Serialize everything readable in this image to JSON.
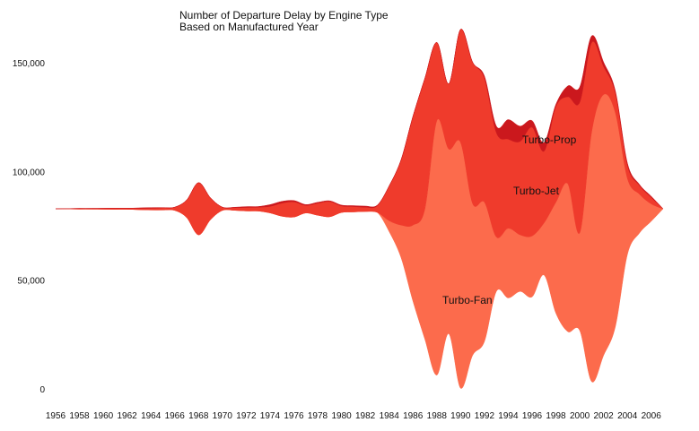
{
  "chart_data": {
    "type": "area",
    "subtype": "streamgraph",
    "title": "Number of Departure Delay by Engine Type",
    "subtitle": "Based on Manufactured Year",
    "xlabel": "",
    "ylabel": "",
    "ylim": [
      0,
      165000
    ],
    "yticks": [
      0,
      50000,
      100000,
      150000
    ],
    "ytick_labels": [
      "0",
      "50,000",
      "100,000",
      "150,000"
    ],
    "x": [
      1956,
      1957,
      1958,
      1959,
      1960,
      1961,
      1962,
      1963,
      1964,
      1965,
      1966,
      1967,
      1968,
      1969,
      1970,
      1971,
      1972,
      1973,
      1974,
      1975,
      1976,
      1977,
      1978,
      1979,
      1980,
      1981,
      1982,
      1983,
      1984,
      1985,
      1986,
      1987,
      1988,
      1989,
      1990,
      1991,
      1992,
      1993,
      1994,
      1995,
      1996,
      1997,
      1998,
      1999,
      2000,
      2001,
      2002,
      2003,
      2004,
      2005,
      2006,
      2007
    ],
    "xtick_labels": [
      "1956",
      "1958",
      "1960",
      "1962",
      "1964",
      "1966",
      "1968",
      "1970",
      "1972",
      "1974",
      "1976",
      "1978",
      "1980",
      "1982",
      "1984",
      "1986",
      "1988",
      "1990",
      "1992",
      "1994",
      "1996",
      "1998",
      "2000",
      "2002",
      "2004",
      "2006"
    ],
    "grid": false,
    "legend": "none",
    "series": [
      {
        "name": "Turbo-Fan",
        "color": "#fc6b4c",
        "values": [
          0,
          0,
          0,
          0,
          0,
          0,
          0,
          0,
          0,
          0,
          0,
          0,
          0,
          0,
          0,
          0,
          0,
          0,
          0,
          0,
          0,
          0,
          0,
          0,
          0,
          0,
          0,
          0,
          5000,
          15000,
          35000,
          60000,
          117000,
          85000,
          113000,
          70000,
          64000,
          25000,
          32000,
          26000,
          28000,
          24000,
          51000,
          68000,
          45000,
          115000,
          120000,
          98000,
          35000,
          18000,
          8000,
          0
        ]
      },
      {
        "name": "Turbo-Jet",
        "color": "#ef3b2c",
        "values": [
          0,
          200,
          300,
          300,
          400,
          500,
          500,
          600,
          800,
          1000,
          1500,
          8000,
          24000,
          10000,
          1500,
          1200,
          1600,
          1800,
          3000,
          6000,
          7000,
          3500,
          5500,
          7000,
          3000,
          2500,
          2000,
          3000,
          16000,
          30000,
          50000,
          60000,
          36000,
          30000,
          52000,
          65000,
          57000,
          48000,
          41000,
          43000,
          50000,
          33000,
          44000,
          40000,
          60000,
          41000,
          13000,
          9000,
          6000,
          4000,
          3000,
          0
        ]
      },
      {
        "name": "Turbo-Prop",
        "color": "#cb181d",
        "values": [
          0,
          0,
          0,
          0,
          0,
          0,
          0,
          200,
          300,
          100,
          0,
          0,
          0,
          0,
          0,
          200,
          400,
          300,
          800,
          800,
          600,
          400,
          400,
          300,
          400,
          400,
          500,
          300,
          0,
          0,
          0,
          0,
          0,
          0,
          0,
          0,
          1000,
          3000,
          9000,
          7000,
          3000,
          4000,
          1000,
          5000,
          7000,
          3000,
          2000,
          1000,
          1000,
          500,
          500,
          0
        ]
      }
    ],
    "annotations": [
      "Turbo-Prop",
      "Turbo-Jet",
      "Turbo-Fan"
    ]
  }
}
